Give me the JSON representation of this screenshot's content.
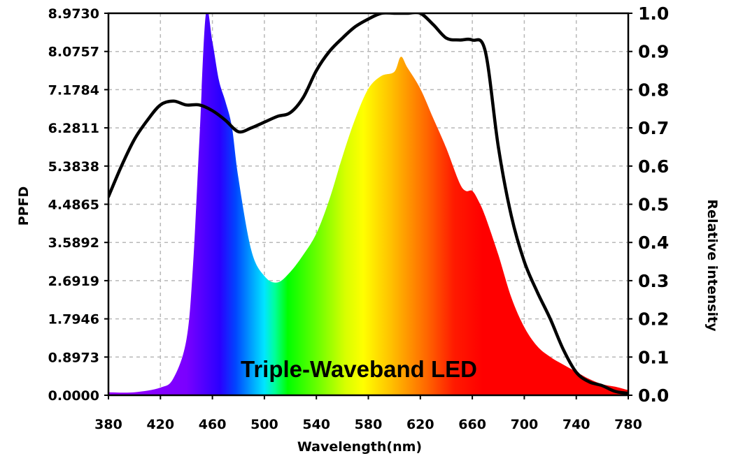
{
  "chart_data": {
    "type": "area",
    "xlabel": "Wavelength(nm)",
    "ylabel_left": "PPFD",
    "ylabel_right": "Relative intensity",
    "annotation": "Triple-Waveband LED",
    "xlim": [
      380,
      780
    ],
    "ylim_left": [
      0,
      8.973
    ],
    "ylim_right": [
      0,
      1.0
    ],
    "grid": true,
    "x_ticks": [
      "380",
      "420",
      "460",
      "500",
      "540",
      "580",
      "620",
      "660",
      "700",
      "740",
      "780"
    ],
    "y_ticks_left": [
      "0.0000",
      "0.8973",
      "1.7946",
      "2.6919",
      "3.5892",
      "4.4865",
      "5.3838",
      "6.2811",
      "7.1784",
      "8.0757",
      "8.9730"
    ],
    "y_ticks_right": [
      "0.0",
      "0.1",
      "0.2",
      "0.3",
      "0.4",
      "0.5",
      "0.6",
      "0.7",
      "0.8",
      "0.9",
      "1.0"
    ],
    "series": [
      {
        "name": "PPFD",
        "axis": "left",
        "style": "spectrum-filled-area",
        "x": [
          380,
          400,
          420,
          430,
          440,
          445,
          450,
          455,
          460,
          465,
          470,
          475,
          480,
          490,
          500,
          510,
          520,
          530,
          540,
          550,
          560,
          570,
          580,
          590,
          600,
          605,
          610,
          620,
          630,
          640,
          650,
          655,
          660,
          665,
          670,
          680,
          690,
          700,
          710,
          720,
          730,
          740,
          750,
          760,
          770,
          780
        ],
        "values": [
          0.07,
          0.07,
          0.18,
          0.4,
          1.3,
          3.0,
          6.0,
          8.97,
          8.3,
          7.4,
          6.9,
          6.3,
          5.1,
          3.4,
          2.8,
          2.65,
          2.9,
          3.3,
          3.8,
          4.6,
          5.6,
          6.5,
          7.2,
          7.5,
          7.6,
          7.95,
          7.7,
          7.2,
          6.5,
          5.8,
          5.0,
          4.8,
          4.8,
          4.55,
          4.2,
          3.3,
          2.3,
          1.6,
          1.15,
          0.9,
          0.72,
          0.55,
          0.38,
          0.26,
          0.2,
          0.12
        ]
      },
      {
        "name": "Relative intensity",
        "axis": "right",
        "style": "line",
        "color": "#000000",
        "x": [
          380,
          390,
          400,
          410,
          420,
          430,
          440,
          450,
          460,
          470,
          480,
          490,
          500,
          510,
          520,
          530,
          540,
          550,
          560,
          570,
          580,
          590,
          600,
          610,
          620,
          630,
          640,
          650,
          660,
          670,
          680,
          690,
          700,
          710,
          720,
          730,
          740,
          750,
          760,
          770,
          780
        ],
        "values": [
          0.52,
          0.6,
          0.67,
          0.72,
          0.76,
          0.77,
          0.76,
          0.76,
          0.745,
          0.72,
          0.69,
          0.7,
          0.715,
          0.73,
          0.74,
          0.78,
          0.85,
          0.9,
          0.935,
          0.965,
          0.985,
          1.0,
          1.0,
          1.0,
          1.0,
          0.97,
          0.935,
          0.93,
          0.93,
          0.9,
          0.65,
          0.47,
          0.35,
          0.27,
          0.2,
          0.12,
          0.06,
          0.035,
          0.025,
          0.01,
          0.005
        ]
      }
    ]
  }
}
